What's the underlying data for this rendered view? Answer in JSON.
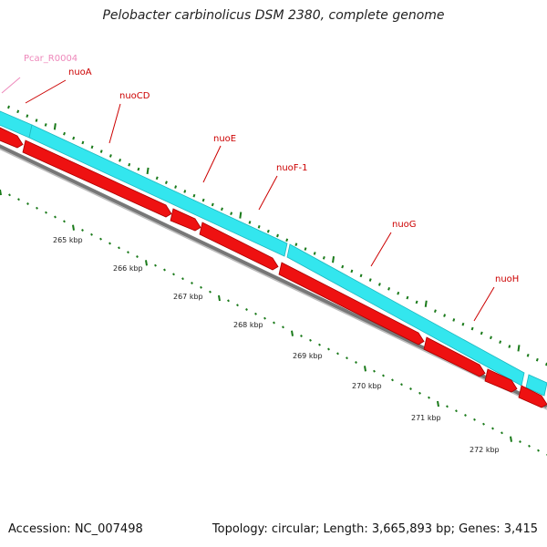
{
  "title": "Pelobacter carbinolicus DSM 2380, complete genome",
  "footer": {
    "accession": "Accession: NC_007498",
    "stats": "Topology: circular; Length: 3,665,893 bp; Genes: 3,415"
  },
  "colors": {
    "cds_forward": "#33e6ee",
    "cds_reverse": "#ee1111",
    "label_red": "#cc0000",
    "label_pink": "#ee88bb",
    "tick_green": "#1a7a1a",
    "backbone": "#777777"
  },
  "genes": [
    {
      "name": "Pcar_R0004",
      "color": "pink"
    },
    {
      "name": "nuoA",
      "color": "red"
    },
    {
      "name": "nuoCD",
      "color": "red"
    },
    {
      "name": "nuoE",
      "color": "red"
    },
    {
      "name": "nuoF-1",
      "color": "red"
    },
    {
      "name": "nuoG",
      "color": "red"
    },
    {
      "name": "nuoH",
      "color": "red"
    }
  ],
  "kbp_labels": [
    "265 kbp",
    "266 kbp",
    "267 kbp",
    "268 kbp",
    "269 kbp",
    "270 kbp",
    "271 kbp",
    "272 kbp"
  ]
}
